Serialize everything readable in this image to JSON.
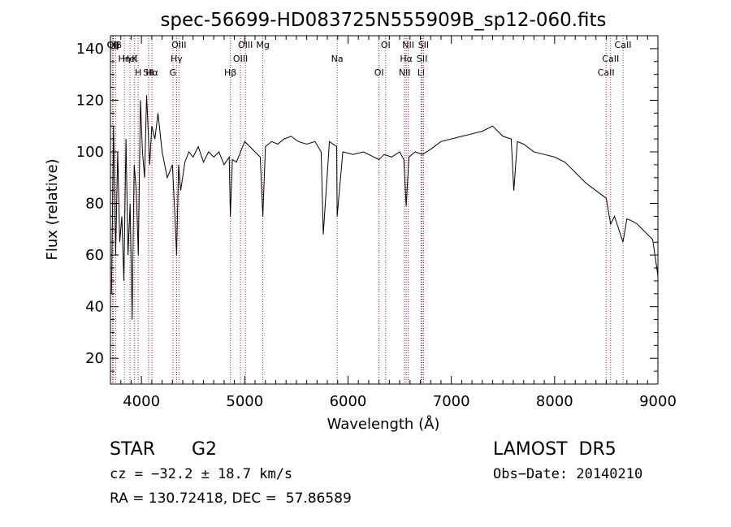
{
  "chart_data": {
    "type": "line",
    "title": "spec-56699-HD083725N555909B_sp12-060.fits",
    "xlabel": "Wavelength (Å)",
    "ylabel": "Flux (relative)",
    "xlim": [
      3700,
      9000
    ],
    "ylim": [
      10,
      145
    ],
    "xticks": [
      4000,
      5000,
      6000,
      7000,
      8000,
      9000
    ],
    "yticks": [
      20,
      40,
      60,
      80,
      100,
      120,
      140
    ],
    "grid": false,
    "line_color": "#000000",
    "marker_color": "#b22222",
    "spectrum": {
      "x": [
        3710,
        3730,
        3750,
        3770,
        3790,
        3810,
        3830,
        3850,
        3870,
        3890,
        3910,
        3930,
        3950,
        3970,
        3990,
        4010,
        4030,
        4050,
        4080,
        4100,
        4130,
        4160,
        4200,
        4250,
        4300,
        4330,
        4340,
        4360,
        4380,
        4420,
        4460,
        4500,
        4550,
        4600,
        4650,
        4700,
        4750,
        4800,
        4850,
        4861,
        4880,
        4920,
        4960,
        5000,
        5050,
        5100,
        5150,
        5175,
        5200,
        5260,
        5320,
        5380,
        5450,
        5520,
        5600,
        5680,
        5740,
        5760,
        5820,
        5890,
        5895,
        5950,
        6050,
        6150,
        6250,
        6300,
        6350,
        6420,
        6500,
        6540,
        6563,
        6590,
        6650,
        6720,
        6800,
        6900,
        7000,
        7100,
        7200,
        7300,
        7400,
        7500,
        7580,
        7605,
        7640,
        7700,
        7800,
        7900,
        8000,
        8100,
        8200,
        8300,
        8400,
        8500,
        8542,
        8580,
        8662,
        8700,
        8760,
        8800,
        8850,
        8900,
        8950,
        9000
      ],
      "y": [
        45,
        110,
        60,
        100,
        65,
        75,
        50,
        105,
        60,
        80,
        35,
        95,
        85,
        60,
        120,
        100,
        90,
        122,
        95,
        110,
        105,
        115,
        100,
        90,
        95,
        70,
        60,
        95,
        85,
        96,
        100,
        98,
        102,
        96,
        100,
        98,
        100,
        95,
        98,
        75,
        97,
        96,
        100,
        104,
        102,
        100,
        98,
        75,
        102,
        104,
        103,
        105,
        106,
        104,
        103,
        104,
        100,
        68,
        104,
        102,
        75,
        100,
        99,
        100,
        98,
        97,
        99,
        98,
        100,
        97,
        79,
        98,
        100,
        99,
        101,
        104,
        105,
        106,
        107,
        108,
        110,
        106,
        105,
        85,
        104,
        103,
        100,
        99,
        98,
        96,
        92,
        88,
        85,
        82,
        72,
        75,
        65,
        74,
        73,
        72,
        70,
        68,
        66,
        52
      ]
    },
    "annotations": [
      {
        "label": "Hβ",
        "x": 3750
      },
      {
        "label": "K",
        "x": 3934
      },
      {
        "label": "Hα",
        "x": 4102
      },
      {
        "label": "OII",
        "x": 3727
      },
      {
        "label": "HeI",
        "x": 3889
      },
      {
        "label": "SII",
        "x": 4069
      },
      {
        "label": "CII",
        "x": 3720
      },
      {
        "label": "Hη",
        "x": 3835
      },
      {
        "label": "H",
        "x": 3968
      },
      {
        "label": "OIII",
        "x": 4363
      },
      {
        "label": "Hγ",
        "x": 4340
      },
      {
        "label": "G",
        "x": 4305
      },
      {
        "label": "OIII",
        "x": 5007
      },
      {
        "label": "OIII",
        "x": 4959
      },
      {
        "label": "Hβ",
        "x": 4861
      },
      {
        "label": "Mg",
        "x": 5175
      },
      {
        "label": "Na",
        "x": 5895
      },
      {
        "label": "OI",
        "x": 6300
      },
      {
        "label": "OI",
        "x": 6364
      },
      {
        "label": "Hα",
        "x": 6563
      },
      {
        "label": "NII",
        "x": 6548
      },
      {
        "label": "NII",
        "x": 6583
      },
      {
        "label": "SII",
        "x": 6717
      },
      {
        "label": "Li",
        "x": 6708
      },
      {
        "label": "SII",
        "x": 6731
      },
      {
        "label": "CaII",
        "x": 8542
      },
      {
        "label": "CaII",
        "x": 8498
      },
      {
        "label": "CaII",
        "x": 8662
      }
    ]
  },
  "info": {
    "object_class": "STAR",
    "subclass": "G2",
    "survey": "LAMOST  DR5",
    "redshift": "cz = −32.2 ± 18.7 km/s",
    "obs_date": "Obs−Date: 20140210",
    "coords": "RA = 130.72418, DEC =  57.86589"
  }
}
